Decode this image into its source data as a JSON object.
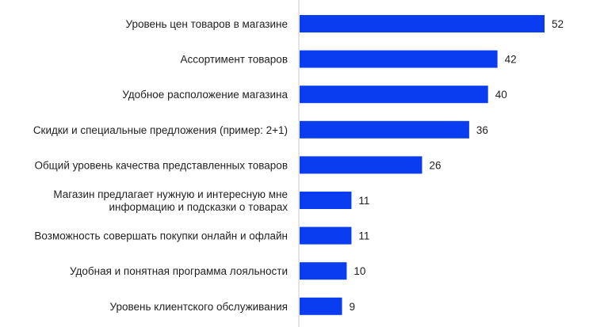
{
  "chart_data": {
    "type": "bar",
    "orientation": "horizontal",
    "categories": [
      "Уровень цен товаров в магазине",
      "Ассортимент товаров",
      "Удобное расположение магазина",
      "Скидки и специальные предложения (пример: 2+1)",
      "Общий уровень качества представленных товаров",
      "Магазин предлагает нужную и интересную мне\nинформацию и подсказки о товарах",
      "Возможность совершать покупки онлайн и офлайн",
      "Удобная и понятная программа лояльности",
      "Уровень клиентского обслуживания"
    ],
    "values": [
      52,
      42,
      40,
      36,
      26,
      11,
      11,
      10,
      9
    ],
    "data_labels": [
      "52",
      "42",
      "40",
      "36",
      "26",
      "11",
      "11",
      "10",
      "9"
    ],
    "title": "",
    "xlabel": "",
    "ylabel": "",
    "xlim": [
      0,
      52
    ],
    "grid": false,
    "legend": "none",
    "colors": {
      "bar": "#0a3cf0",
      "axis": "#c8c8c8",
      "text": "#1f1f1f"
    }
  }
}
